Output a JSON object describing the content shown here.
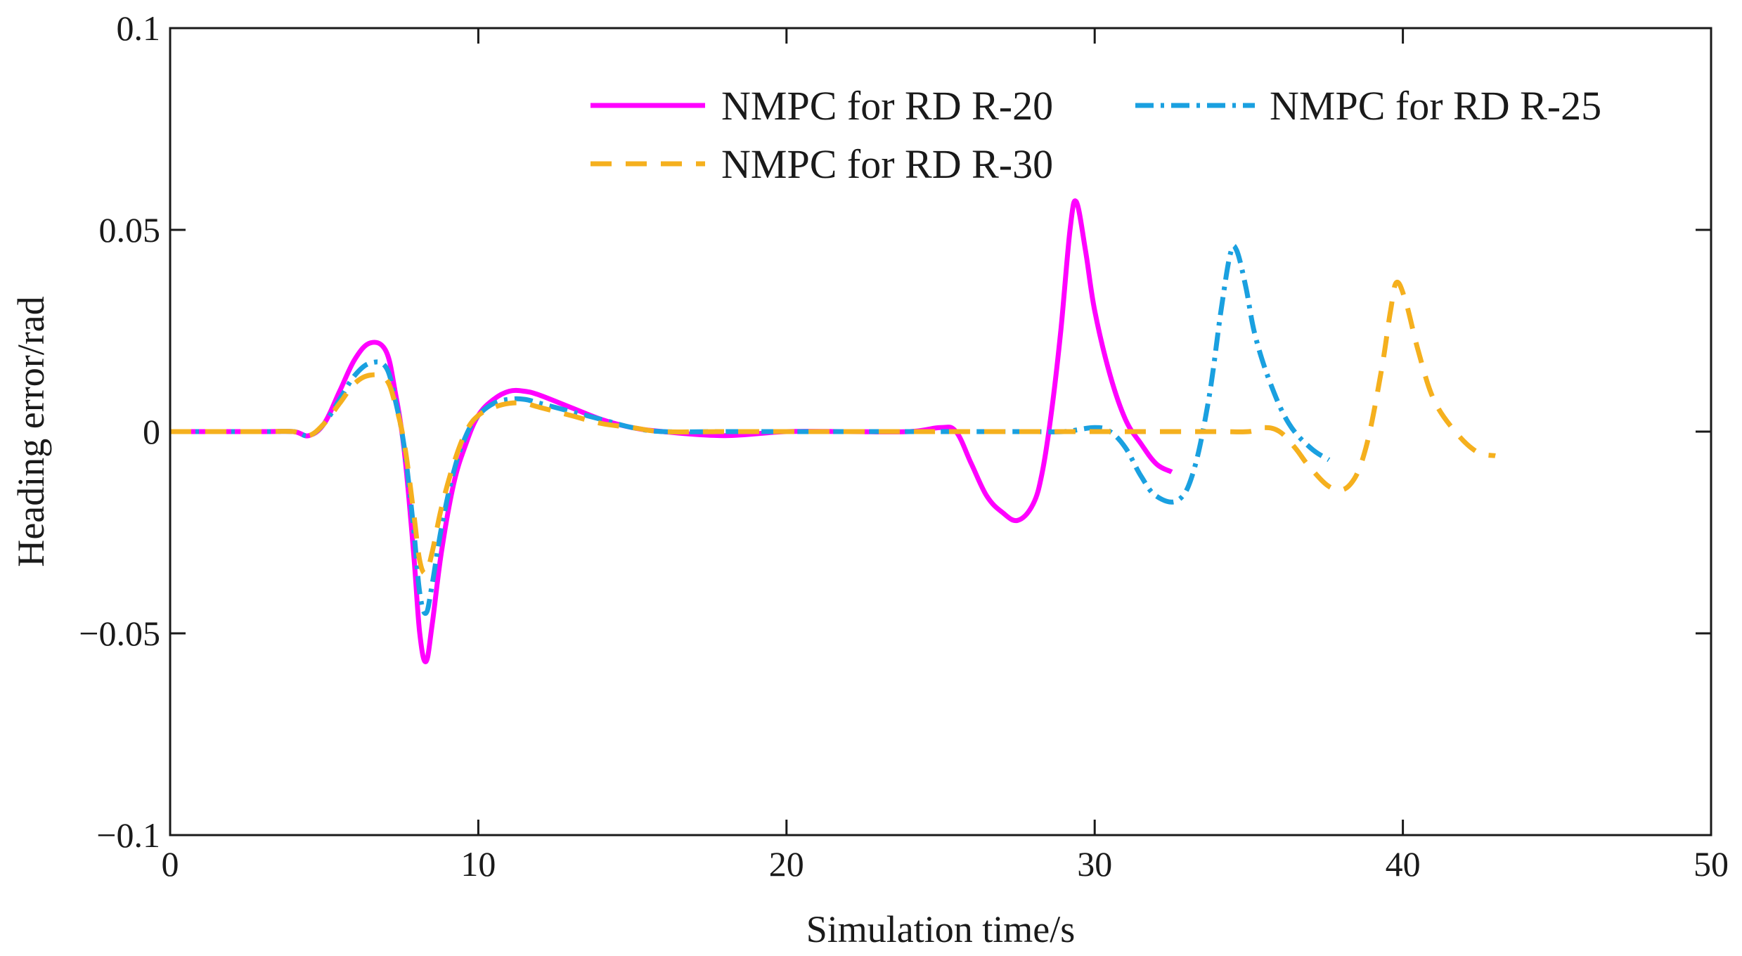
{
  "chart_data": {
    "type": "line",
    "title": "",
    "xlabel": "Simulation time/s",
    "ylabel": "Heading error/rad",
    "xlim": [
      0,
      50
    ],
    "ylim": [
      -0.1,
      0.1
    ],
    "xticks": [
      0,
      10,
      20,
      30,
      40,
      50
    ],
    "xtick_labels": [
      "0",
      "10",
      "20",
      "30",
      "40",
      "50"
    ],
    "yticks": [
      -0.1,
      -0.05,
      0,
      0.05,
      0.1
    ],
    "ytick_labels": [
      "−0.1",
      "−0.05",
      "0",
      "0.05",
      "0.1"
    ],
    "grid": false,
    "legend_position": "top-right",
    "series": [
      {
        "name": "NMPC for RD R-20",
        "color": "#ff00ff",
        "style": "solid",
        "x": [
          0,
          3,
          4,
          4.5,
          5,
          5.5,
          6,
          6.5,
          7,
          7.3,
          7.6,
          7.9,
          8.1,
          8.3,
          8.5,
          8.8,
          9.2,
          9.6,
          10,
          10.5,
          11,
          11.5,
          12,
          13,
          14,
          15,
          16,
          18,
          20,
          22,
          24,
          25,
          25.5,
          26,
          26.5,
          27,
          27.5,
          28,
          28.3,
          28.6,
          28.9,
          29.2,
          29.4,
          29.7,
          30,
          30.5,
          31,
          31.5,
          32,
          32.5
        ],
        "y": [
          0,
          0,
          0,
          -0.001,
          0.002,
          0.01,
          0.018,
          0.022,
          0.02,
          0.01,
          -0.005,
          -0.03,
          -0.05,
          -0.057,
          -0.048,
          -0.03,
          -0.013,
          -0.003,
          0.004,
          0.008,
          0.01,
          0.01,
          0.009,
          0.006,
          0.003,
          0.001,
          0,
          -0.001,
          0,
          0,
          0,
          0.001,
          0,
          -0.008,
          -0.016,
          -0.02,
          -0.022,
          -0.018,
          -0.01,
          0.005,
          0.025,
          0.05,
          0.057,
          0.045,
          0.03,
          0.014,
          0.003,
          -0.003,
          -0.008,
          -0.01
        ]
      },
      {
        "name": "NMPC for RD R-25",
        "color": "#1aa0e0",
        "style": "dashdot",
        "x": [
          0,
          3,
          4,
          4.5,
          5,
          5.5,
          6,
          6.5,
          7,
          7.3,
          7.6,
          7.9,
          8.1,
          8.3,
          8.5,
          8.8,
          9.2,
          9.6,
          10,
          10.5,
          11,
          11.5,
          12,
          13,
          14,
          15,
          16,
          18,
          20,
          22,
          24,
          26,
          28,
          29,
          30,
          30.5,
          31,
          31.5,
          32,
          32.7,
          33.2,
          33.7,
          34.1,
          34.4,
          34.6,
          34.9,
          35.2,
          35.7,
          36.3,
          37,
          37.6
        ],
        "y": [
          0,
          0,
          0,
          -0.001,
          0.002,
          0.008,
          0.014,
          0.017,
          0.016,
          0.008,
          -0.004,
          -0.024,
          -0.04,
          -0.045,
          -0.038,
          -0.024,
          -0.01,
          -0.001,
          0.004,
          0.007,
          0.008,
          0.008,
          0.007,
          0.005,
          0.003,
          0.001,
          0,
          0,
          0,
          0,
          0,
          0,
          0,
          0,
          0.001,
          0,
          -0.004,
          -0.011,
          -0.016,
          -0.017,
          -0.01,
          0.008,
          0.03,
          0.044,
          0.045,
          0.036,
          0.024,
          0.012,
          0.002,
          -0.004,
          -0.007
        ]
      },
      {
        "name": "NMPC for RD R-30",
        "color": "#f5b01e",
        "style": "dashed",
        "x": [
          0,
          3,
          4,
          4.5,
          5,
          5.5,
          6,
          6.5,
          7,
          7.3,
          7.6,
          7.9,
          8.1,
          8.3,
          8.5,
          8.8,
          9.2,
          9.6,
          10,
          10.5,
          11,
          11.5,
          12,
          13,
          14,
          15,
          16,
          18,
          20,
          22,
          24,
          26,
          28,
          30,
          32,
          34,
          35,
          35.5,
          36,
          36.5,
          37,
          37.7,
          38.3,
          38.8,
          39.3,
          39.6,
          39.8,
          40.1,
          40.5,
          41,
          41.7,
          42.4,
          43
        ],
        "y": [
          0,
          0,
          0,
          -0.001,
          0.002,
          0.007,
          0.012,
          0.014,
          0.013,
          0.007,
          -0.003,
          -0.02,
          -0.032,
          -0.035,
          -0.03,
          -0.019,
          -0.008,
          0,
          0.004,
          0.006,
          0.007,
          0.007,
          0.006,
          0.004,
          0.002,
          0.001,
          0,
          0,
          0,
          0,
          0,
          0,
          0,
          0,
          0,
          0,
          0,
          0.001,
          0,
          -0.004,
          -0.009,
          -0.014,
          -0.013,
          -0.004,
          0.015,
          0.03,
          0.037,
          0.032,
          0.02,
          0.008,
          0,
          -0.005,
          -0.006
        ]
      }
    ]
  }
}
